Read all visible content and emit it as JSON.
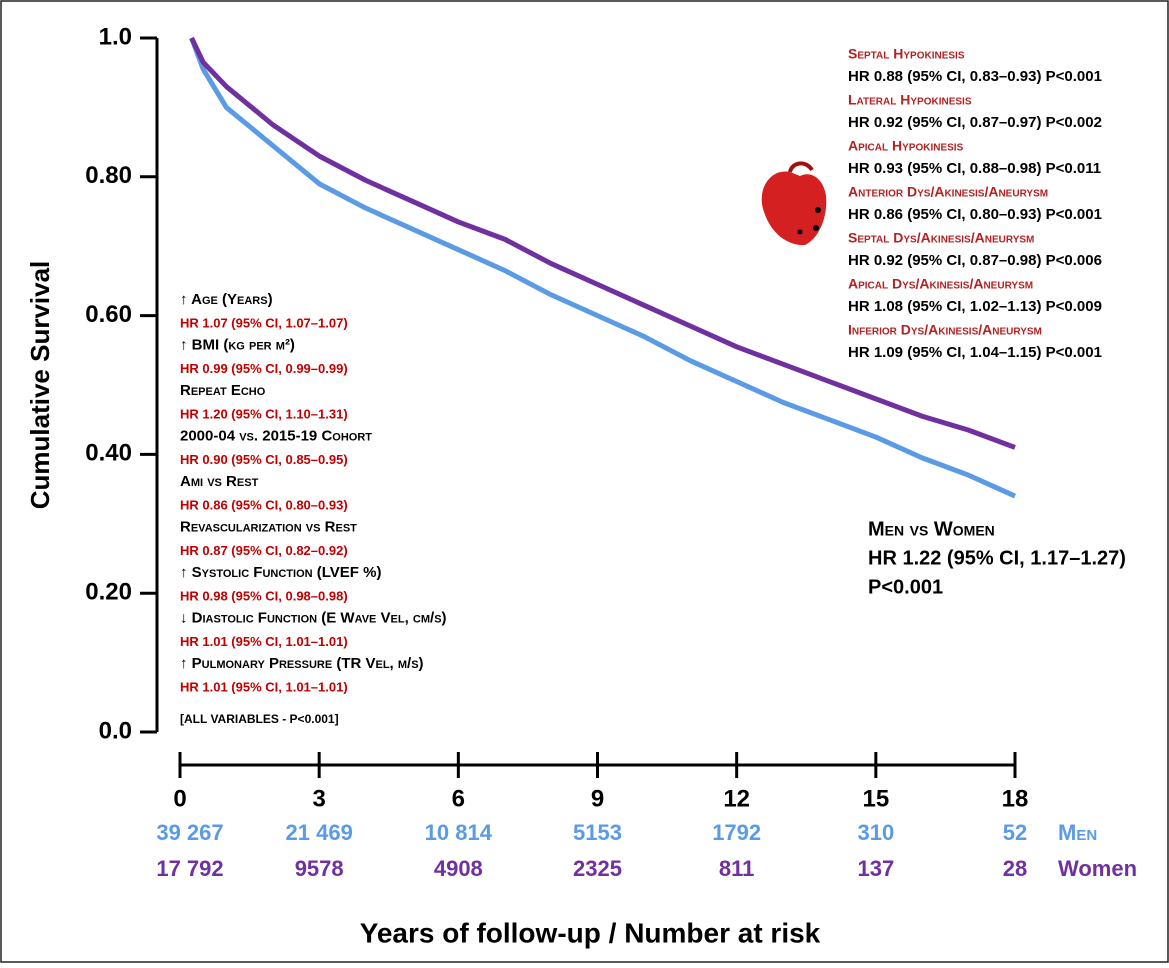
{
  "chart_data": {
    "type": "line",
    "y_label": "Cumulative Survival",
    "x_label": "Years of follow-up / Number at risk",
    "ylim": [
      0,
      1
    ],
    "yticks": [
      {
        "value": 0,
        "label": "0.0"
      },
      {
        "value": 0.2,
        "label": "0.20"
      },
      {
        "value": 0.4,
        "label": "0.40"
      },
      {
        "value": 0.6,
        "label": "0.60"
      },
      {
        "value": 0.8,
        "label": "0.80"
      },
      {
        "value": 1,
        "label": "1.0"
      }
    ],
    "xlim": [
      0,
      18
    ],
    "xticks": [
      0,
      3,
      6,
      9,
      12,
      15,
      18
    ],
    "x": [
      0.25,
      0.5,
      1,
      2,
      3,
      4,
      5,
      6,
      7,
      8,
      9,
      10,
      11,
      12,
      13,
      14,
      15,
      16,
      17,
      18
    ],
    "series": [
      {
        "name": "Men",
        "color": "#5b9be6",
        "values": [
          1.0,
          0.955,
          0.9,
          0.845,
          0.79,
          0.755,
          0.725,
          0.695,
          0.665,
          0.63,
          0.6,
          0.57,
          0.535,
          0.505,
          0.475,
          0.45,
          0.425,
          0.395,
          0.37,
          0.34
        ],
        "at_risk": [
          39267,
          21469,
          10814,
          5153,
          1792,
          310,
          52
        ],
        "at_risk_labels": [
          "39 267",
          "21 469",
          "10 814",
          "5153",
          "1792",
          "310",
          "52"
        ]
      },
      {
        "name": "Women",
        "color": "#7030a0",
        "values": [
          1.0,
          0.965,
          0.93,
          0.875,
          0.83,
          0.795,
          0.765,
          0.735,
          0.71,
          0.675,
          0.645,
          0.615,
          0.585,
          0.555,
          0.53,
          0.505,
          0.48,
          0.455,
          0.435,
          0.41
        ],
        "at_risk": [
          17792,
          9578,
          4908,
          2325,
          811,
          137,
          28
        ],
        "at_risk_labels": [
          "17 792",
          "9578",
          "4908",
          "2325",
          "811",
          "137",
          "28"
        ]
      }
    ],
    "left_annotations": [
      {
        "label": "↑ Age (Years)",
        "hr": "HR 1.07 (95% CI, 1.07–1.07)"
      },
      {
        "label": "↑ BMI (kg per m²)",
        "hr": "HR 0.99 (95% CI, 0.99–0.99)"
      },
      {
        "label": "Repeat Echo",
        "hr": "HR 1.20 (95% CI, 1.10–1.31)"
      },
      {
        "label": "2000-04 vs. 2015-19 Cohort",
        "hr": "HR 0.90 (95% CI, 0.85–0.95)"
      },
      {
        "label": "Ami vs  Rest",
        "hr": "HR 0.86 (95% CI, 0.80–0.93)"
      },
      {
        "label": "Revascularization vs Rest",
        "hr": "HR 0.87 (95% CI, 0.82–0.92)"
      },
      {
        "label": "↑ Systolic Function (LVEF %)",
        "hr": "HR 0.98 (95% CI, 0.98–0.98)"
      },
      {
        "label": "↓ Diastolic Function (E Wave Vel, cm/s)",
        "hr": "HR 1.01 (95% CI, 1.01–1.01)"
      },
      {
        "label": "↑ Pulmonary Pressure (TR Vel, m/s)",
        "hr": "HR 1.01 (95% CI, 1.01–1.01)"
      }
    ],
    "left_footnote": "[ALL VARIABLES - P<0.001]",
    "right_annotations": [
      {
        "label": "Septal Hypokinesis",
        "hr": "HR 0.88 (95% CI, 0.83–0.93) P<0.001"
      },
      {
        "label": "Lateral Hypokinesis",
        "hr": "HR 0.92 (95% CI, 0.87–0.97) P<0.002"
      },
      {
        "label": "Apical Hypokinesis",
        "hr": "HR 0.93 (95% CI, 0.88–0.98) P<0.011"
      },
      {
        "label": "Anterior Dys/Akinesis/Aneurysm",
        "hr": "HR 0.86 (95% CI, 0.80–0.93) P<0.001"
      },
      {
        "label": "Septal Dys/Akinesis/Aneurysm",
        "hr": "HR 0.92 (95% CI, 0.87–0.98) P<0.006"
      },
      {
        "label": "Apical Dys/Akinesis/Aneurysm",
        "hr": "HR 1.08 (95% CI, 1.02–1.13) P<0.009"
      },
      {
        "label": "Inferior Dys/Akinesis/Aneurysm",
        "hr": "HR 1.09 (95% CI, 1.04–1.15) P<0.001"
      }
    ],
    "comparison": [
      "Men vs  Women",
      "HR 1.22 (95% CI, 1.17–1.27)",
      "P<0.001"
    ]
  }
}
